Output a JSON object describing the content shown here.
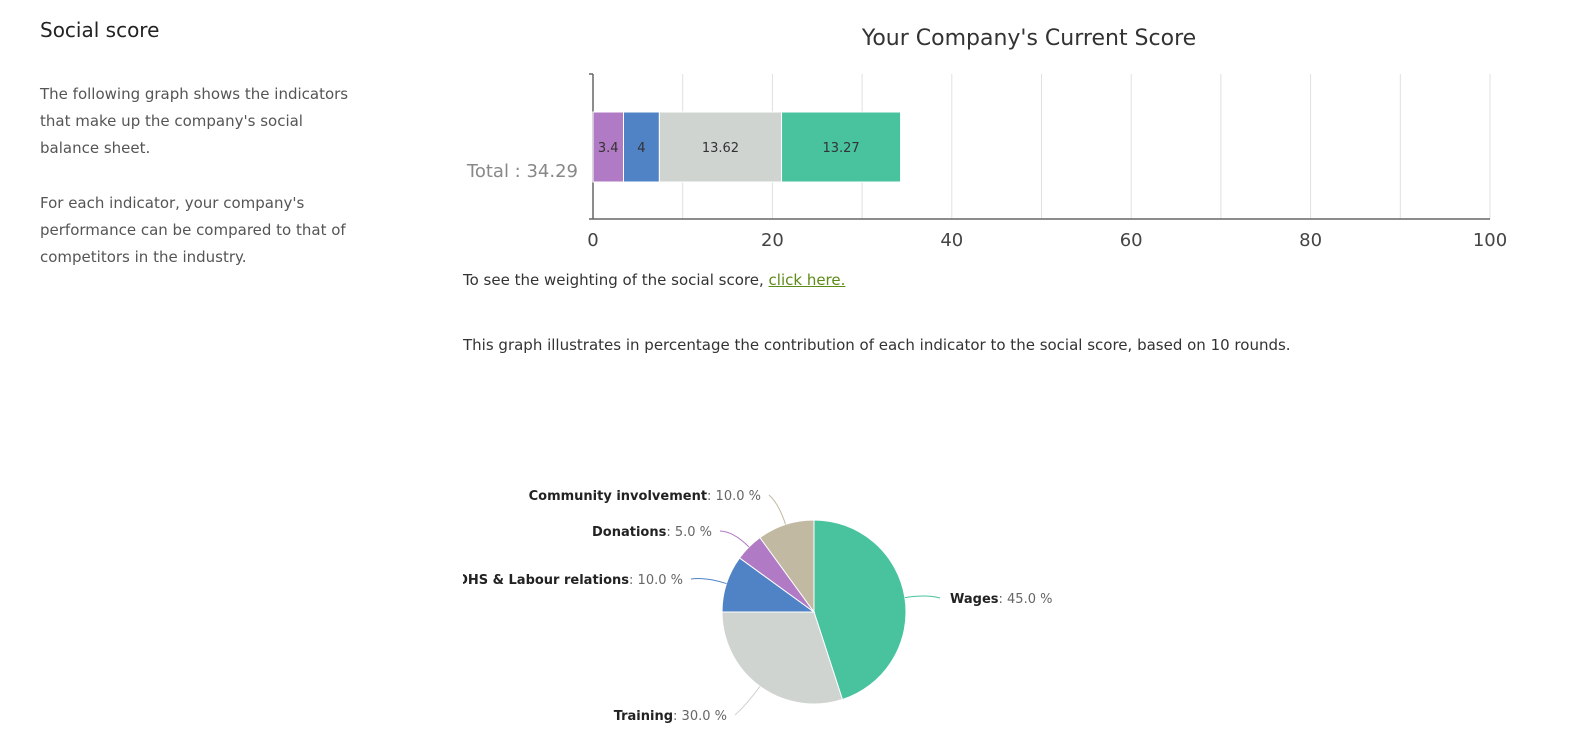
{
  "sidebar": {
    "title": "Social score",
    "para1": "The following graph shows the indicators that make up the company's social balance sheet.",
    "para2": "For each indicator, your company's performance can be compared to that of competitors in the industry."
  },
  "weighting_note": {
    "text": "To see the weighting of the social score,",
    "link": "click here."
  },
  "pie_note": "This graph illustrates in percentage the contribution of each indicator to the social score, based on 10 rounds.",
  "chart_data": [
    {
      "type": "bar",
      "orientation": "horizontal",
      "stacked": true,
      "title": "Your Company's Current Score",
      "categories": [
        "Total : 34.29"
      ],
      "series": [
        {
          "values": [
            3.4
          ],
          "label": "3.4",
          "color": "#b17ac4"
        },
        {
          "values": [
            4
          ],
          "label": "4",
          "color": "#4f83c6"
        },
        {
          "values": [
            13.62
          ],
          "label": "13.62",
          "color": "#d0d4d1"
        },
        {
          "values": [
            13.27
          ],
          "label": "13.27",
          "color": "#48c39e"
        }
      ],
      "xlim": [
        0,
        100
      ],
      "x_ticks": [
        0,
        20,
        40,
        60,
        80,
        100
      ],
      "grid": true
    },
    {
      "type": "pie",
      "slices": [
        {
          "name": "Wages",
          "value": 45.0,
          "label": ": 45.0 %",
          "color": "#48c39e"
        },
        {
          "name": "Training",
          "value": 30.0,
          "label": ": 30.0 %",
          "color": "#d0d4d1"
        },
        {
          "name": "OHS & Labour relations",
          "value": 10.0,
          "label": ": 10.0 %",
          "color": "#4f83c6"
        },
        {
          "name": "Donations",
          "value": 5.0,
          "label": ": 5.0 %",
          "color": "#b17ac4"
        },
        {
          "name": "Community involvement",
          "value": 10.0,
          "label": ": 10.0 %",
          "color": "#c1b9a1"
        }
      ]
    }
  ]
}
